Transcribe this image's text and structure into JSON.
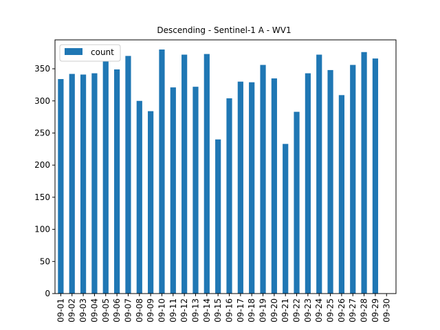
{
  "chart_data": {
    "type": "bar",
    "title": "Descending - Sentinel-1 A - WV1",
    "xlabel": "",
    "ylabel": "",
    "ylim": [
      0,
      395
    ],
    "yticks": [
      0,
      50,
      100,
      150,
      200,
      250,
      300,
      350
    ],
    "grid": false,
    "legend_position": "top-left",
    "categories": [
      "09-01",
      "09-02",
      "09-03",
      "09-04",
      "09-05",
      "09-06",
      "09-07",
      "09-08",
      "09-09",
      "09-10",
      "09-11",
      "09-12",
      "09-13",
      "09-14",
      "09-15",
      "09-16",
      "09-17",
      "09-18",
      "09-19",
      "09-20",
      "09-21",
      "09-22",
      "09-23",
      "09-24",
      "09-25",
      "09-26",
      "09-27",
      "09-28",
      "09-29",
      "09-30"
    ],
    "series": [
      {
        "name": "count",
        "color": "#1f77b4",
        "values": [
          334,
          342,
          341,
          343,
          365,
          349,
          370,
          300,
          284,
          380,
          321,
          372,
          322,
          373,
          240,
          304,
          330,
          329,
          356,
          335,
          233,
          283,
          343,
          372,
          348,
          309,
          356,
          376,
          366,
          null
        ]
      }
    ]
  }
}
